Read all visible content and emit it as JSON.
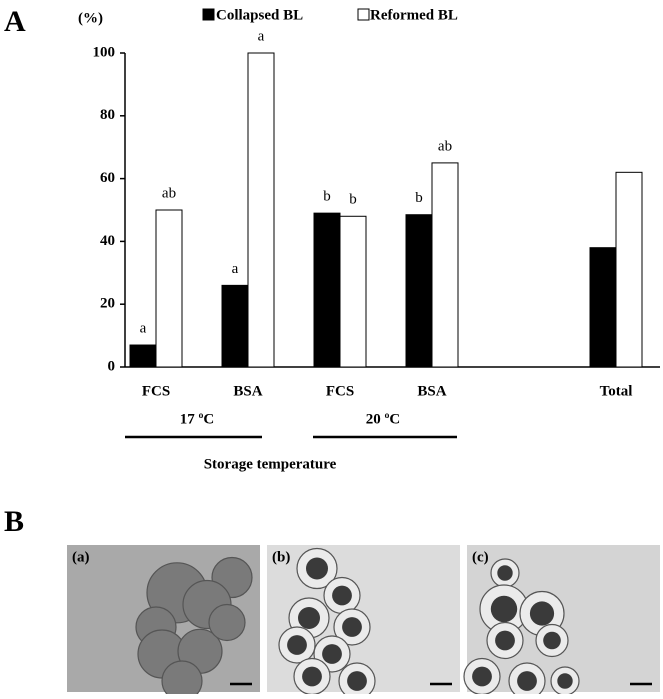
{
  "panel_a_label": "A",
  "chart_data": {
    "type": "bar",
    "y_unit_label": "(%)",
    "x_title": "Storage temperature",
    "categories": [
      "FCS",
      "BSA",
      "FCS",
      "BSA",
      null,
      "Total"
    ],
    "groups": [
      "17 ºC",
      "20 ºC"
    ],
    "series": [
      {
        "name": "Collapsed BL",
        "color": "#000000",
        "values": [
          7,
          26,
          49,
          48.5,
          null,
          38
        ],
        "letters": [
          "a",
          "a",
          "b",
          "b",
          null,
          null
        ]
      },
      {
        "name": "Reformed BL",
        "color": "#ffffff",
        "values": [
          50,
          100,
          48,
          65,
          null,
          62
        ],
        "letters": [
          "ab",
          "a",
          "b",
          "ab",
          null,
          null
        ]
      }
    ],
    "ylim": [
      0,
      100
    ],
    "yticks": [
      0,
      20,
      40,
      60,
      80,
      100
    ],
    "grid": false
  },
  "panel_b": {
    "label": "B",
    "images": [
      "(a)",
      "(b)",
      "(c)"
    ]
  }
}
